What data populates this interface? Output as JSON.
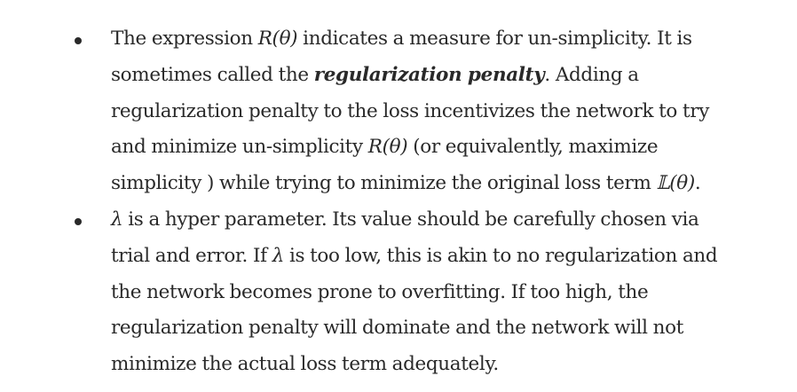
{
  "bullets": [
    {
      "lines": [
        {
          "parts": [
            {
              "t": "text",
              "v": "The expression "
            },
            {
              "t": "math",
              "v": "R(θ)"
            },
            {
              "t": "text",
              "v": " indicates a measure for un-simplicity. It is"
            }
          ]
        },
        {
          "parts": [
            {
              "t": "text",
              "v": "sometimes called the "
            },
            {
              "t": "em",
              "v": "regularization penalty"
            },
            {
              "t": "text",
              "v": ". Adding a"
            }
          ]
        },
        {
          "parts": [
            {
              "t": "text",
              "v": "regularization penalty to the loss incentivizes the network to try"
            }
          ]
        },
        {
          "parts": [
            {
              "t": "text",
              "v": "and minimize un-simplicity "
            },
            {
              "t": "math",
              "v": "R(θ)"
            },
            {
              "t": "text",
              "v": " (or equivalently, maximize"
            }
          ]
        },
        {
          "parts": [
            {
              "t": "text",
              "v": "simplicity ) while trying to minimize the original loss term "
            },
            {
              "t": "math",
              "v": "𝕃(θ)"
            },
            {
              "t": "text",
              "v": "."
            }
          ]
        }
      ]
    },
    {
      "lines": [
        {
          "parts": [
            {
              "t": "math",
              "v": "λ"
            },
            {
              "t": "text",
              "v": " is a hyper parameter. Its value should be carefully chosen via"
            }
          ]
        },
        {
          "parts": [
            {
              "t": "text",
              "v": "trial and error. If "
            },
            {
              "t": "math",
              "v": "λ"
            },
            {
              "t": "text",
              "v": " is too low, this is akin to no regularization and"
            }
          ]
        },
        {
          "parts": [
            {
              "t": "text",
              "v": "the network becomes prone to overfitting. If too high, the"
            }
          ]
        },
        {
          "parts": [
            {
              "t": "text",
              "v": "regularization penalty will dominate and the network will not"
            }
          ]
        },
        {
          "parts": [
            {
              "t": "text",
              "v": "minimize the actual loss term adequately."
            }
          ]
        }
      ]
    }
  ]
}
